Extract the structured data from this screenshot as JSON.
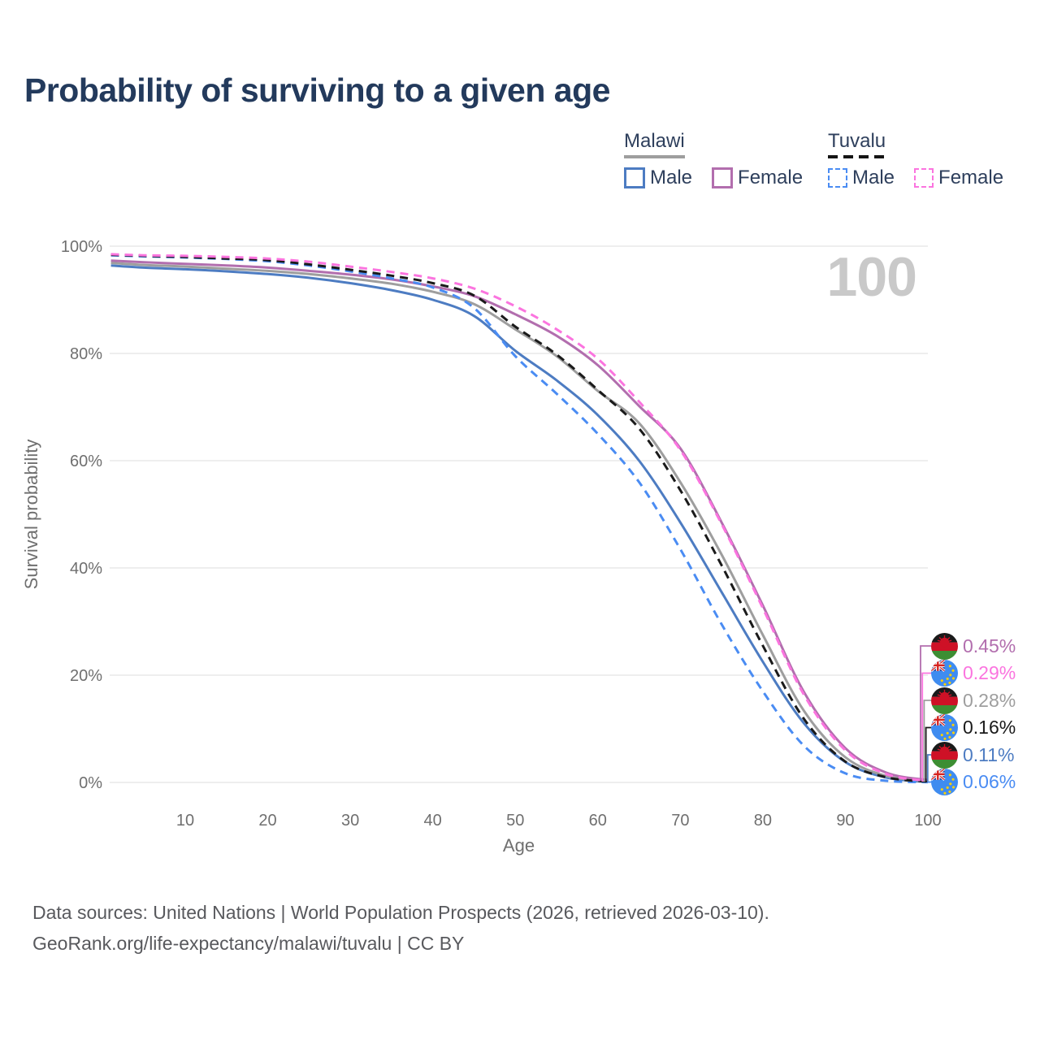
{
  "title": "Probability of surviving to a given age",
  "watermark": "100",
  "legend": {
    "groups": [
      {
        "country": "Malawi",
        "line_style": "solid",
        "underline_color": "#9e9e9e",
        "items": [
          {
            "label": "Male",
            "color": "#4d7cc2",
            "dashed": false
          },
          {
            "label": "Female",
            "color": "#b26eae",
            "dashed": false
          }
        ]
      },
      {
        "country": "Tuvalu",
        "line_style": "dashed",
        "underline_color": "#141414",
        "items": [
          {
            "label": "Male",
            "color": "#4a8cf3",
            "dashed": true
          },
          {
            "label": "Female",
            "color": "#fb74df",
            "dashed": true
          }
        ]
      }
    ]
  },
  "chart_data": {
    "type": "line",
    "title": "Probability of surviving to a given age",
    "xlabel": "Age",
    "ylabel": "Survival probability",
    "x_ticks": [
      10,
      20,
      30,
      40,
      50,
      60,
      70,
      80,
      90,
      100
    ],
    "y_ticks": [
      {
        "label": "100%",
        "value": 100
      },
      {
        "label": "80%",
        "value": 80
      },
      {
        "label": "60%",
        "value": 60
      },
      {
        "label": "40%",
        "value": 40
      },
      {
        "label": "20%",
        "value": 20
      },
      {
        "label": "0%",
        "value": 0
      }
    ],
    "xlim": [
      1,
      100
    ],
    "ylim": [
      0,
      100
    ],
    "grid": "horizontal",
    "ages": [
      1,
      5,
      10,
      15,
      20,
      25,
      30,
      35,
      40,
      45,
      50,
      55,
      60,
      65,
      70,
      75,
      80,
      85,
      90,
      95,
      100
    ],
    "series": [
      {
        "key": "malawi_male",
        "name": "Malawi Male",
        "color": "#4d7cc2",
        "dashed": false,
        "values": [
          96.4,
          96.0,
          95.7,
          95.3,
          94.8,
          94.1,
          93.1,
          91.8,
          90.0,
          87.0,
          80.5,
          75.0,
          68.5,
          60.0,
          48.5,
          35.5,
          22.5,
          11.0,
          3.8,
          0.9,
          0.11
        ]
      },
      {
        "key": "malawi_both",
        "name": "Malawi",
        "color": "#9e9e9e",
        "dashed": false,
        "values": [
          96.9,
          96.5,
          96.2,
          95.8,
          95.4,
          94.8,
          94.0,
          93.0,
          91.5,
          89.2,
          84.5,
          79.5,
          73.0,
          67.0,
          56.0,
          42.5,
          27.5,
          13.3,
          4.7,
          1.2,
          0.28
        ]
      },
      {
        "key": "malawi_female",
        "name": "Malawi Female",
        "color": "#b26eae",
        "dashed": false,
        "values": [
          97.3,
          97.0,
          96.7,
          96.4,
          96.0,
          95.4,
          94.7,
          93.8,
          92.5,
          90.7,
          87.3,
          83.3,
          77.8,
          70.2,
          62.3,
          48.5,
          33.0,
          16.8,
          6.4,
          1.8,
          0.45
        ]
      },
      {
        "key": "tuvalu_male",
        "name": "Tuvalu Male",
        "color": "#4a8cf3",
        "dashed": true,
        "values": [
          98.3,
          98.1,
          97.9,
          97.6,
          97.2,
          96.4,
          95.3,
          94.0,
          92.3,
          88.5,
          79.5,
          72.5,
          65.0,
          56.0,
          43.5,
          29.5,
          17.0,
          6.8,
          1.7,
          0.3,
          0.06
        ]
      },
      {
        "key": "tuvalu_both",
        "name": "Tuvalu",
        "color": "#1a1a1a",
        "dashed": true,
        "values": [
          98.4,
          98.2,
          98.0,
          97.7,
          97.4,
          96.6,
          95.6,
          94.5,
          93.1,
          90.8,
          85.0,
          79.8,
          73.2,
          66.0,
          54.5,
          40.5,
          25.5,
          11.8,
          3.9,
          0.95,
          0.16
        ]
      },
      {
        "key": "tuvalu_female",
        "name": "Tuvalu Female",
        "color": "#fb74df",
        "dashed": true,
        "values": [
          98.5,
          98.3,
          98.2,
          98.0,
          97.7,
          97.1,
          96.2,
          95.2,
          94.0,
          92.1,
          88.8,
          84.5,
          79.0,
          71.0,
          62.0,
          48.2,
          32.5,
          16.3,
          6.0,
          1.55,
          0.29
        ]
      }
    ],
    "end_labels": [
      {
        "flag": "malawi",
        "value": "0.45%",
        "color": "#b26eae",
        "series": "malawi_female"
      },
      {
        "flag": "tuvalu",
        "value": "0.29%",
        "color": "#fb74df",
        "series": "tuvalu_female"
      },
      {
        "flag": "malawi",
        "value": "0.28%",
        "color": "#9e9e9e",
        "series": "malawi_both"
      },
      {
        "flag": "tuvalu",
        "value": "0.16%",
        "color": "#1a1a1a",
        "series": "tuvalu_both"
      },
      {
        "flag": "malawi",
        "value": "0.11%",
        "color": "#4d7cc2",
        "series": "malawi_male"
      },
      {
        "flag": "tuvalu",
        "value": "0.06%",
        "color": "#4a8cf3",
        "series": "tuvalu_male"
      }
    ]
  },
  "footer": {
    "line1": "Data sources: United Nations | World Population Prospects (2026, retrieved 2026-03-10).",
    "line2": "GeoRank.org/life-expectancy/malawi/tuvalu | CC BY"
  }
}
